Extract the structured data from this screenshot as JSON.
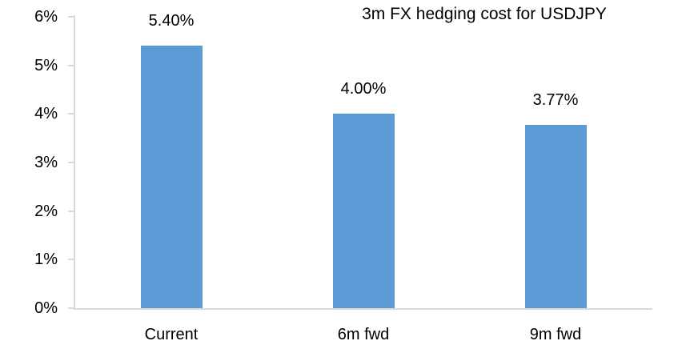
{
  "chart_data": {
    "type": "bar",
    "title": "3m FX hedging cost for USDJPY",
    "categories": [
      "Current",
      "6m fwd",
      "9m fwd"
    ],
    "values": [
      5.4,
      4.0,
      3.77
    ],
    "value_labels": [
      "5.40%",
      "4.00%",
      "3.77%"
    ],
    "ytick_labels": [
      "0%",
      "1%",
      "2%",
      "3%",
      "4%",
      "5%",
      "6%"
    ],
    "ytick_values": [
      0,
      1,
      2,
      3,
      4,
      5,
      6
    ],
    "ylim": [
      0,
      6
    ],
    "xlabel": "",
    "ylabel": "",
    "grid": "off",
    "legend": "none",
    "bar_color": "#5B9BD5",
    "axis_color": "#D9D9D9",
    "text_color": "#000000",
    "background_color": "#FFFFFF"
  }
}
